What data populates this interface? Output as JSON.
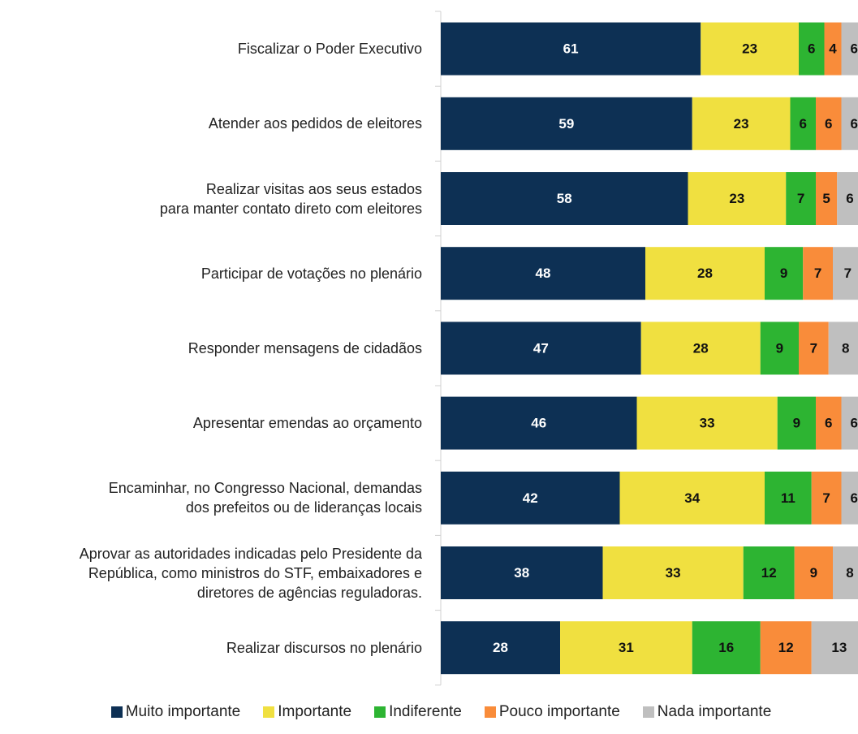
{
  "chart_data": {
    "type": "stacked-bar-horizontal",
    "categories": [
      "Fiscalizar o Poder Executivo",
      "Atender aos pedidos de eleitores",
      "Realizar visitas aos seus estados\npara manter contato direto com eleitores",
      "Participar de votações no plenário",
      "Responder mensagens de cidadãos",
      "Apresentar emendas ao orçamento",
      "Encaminhar, no Congresso Nacional, demandas\ndos prefeitos ou de lideranças locais",
      "Aprovar as autoridades indicadas pelo Presidente da\nRepública, como ministros do STF, embaixadores e\ndiretores de agências reguladoras.",
      "Realizar discursos no plenário"
    ],
    "series": [
      {
        "name": "Muito importante",
        "color": "#0d3054",
        "values": [
          61,
          59,
          58,
          48,
          47,
          46,
          42,
          38,
          28
        ]
      },
      {
        "name": "Importante",
        "color": "#f0e040",
        "values": [
          23,
          23,
          23,
          28,
          28,
          33,
          34,
          33,
          31
        ]
      },
      {
        "name": "Indiferente",
        "color": "#2db432",
        "values": [
          6,
          6,
          7,
          9,
          9,
          9,
          11,
          12,
          16
        ]
      },
      {
        "name": "Pouco importante",
        "color": "#f98c3a",
        "values": [
          4,
          6,
          5,
          7,
          7,
          6,
          7,
          9,
          12
        ]
      },
      {
        "name": "Nada importante",
        "color": "#bfbfbf",
        "values": [
          6,
          6,
          6,
          7,
          8,
          6,
          6,
          8,
          13
        ]
      }
    ],
    "xlim": [
      0,
      100
    ]
  }
}
